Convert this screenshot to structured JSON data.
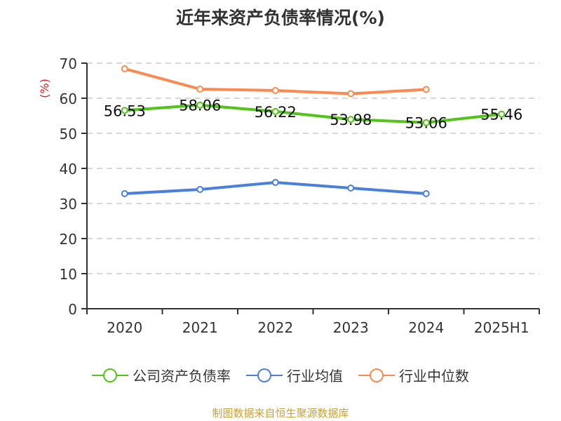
{
  "title": "近年来资产负债率情况(%)",
  "y_axis_unit": "(%)",
  "source": "制图数据来自恒生聚源数据库",
  "legend": [
    {
      "label": "公司资产负债率",
      "color": "#52c41a"
    },
    {
      "label": "行业均值",
      "color": "#4a7fdc"
    },
    {
      "label": "行业中位数",
      "color": "#fc8a50"
    }
  ],
  "chart_data": {
    "type": "line",
    "title": "近年来资产负债率情况(%)",
    "xlabel": "",
    "ylabel": "(%)",
    "categories": [
      "2020",
      "2021",
      "2022",
      "2023",
      "2024",
      "2025H1"
    ],
    "ylim": [
      0,
      70
    ],
    "yticks": [
      0,
      10,
      20,
      30,
      40,
      50,
      60,
      70
    ],
    "grid": "horizontal dashed",
    "legend_position": "bottom",
    "series": [
      {
        "name": "公司资产负债率",
        "color": "#52c41a",
        "values": [
          56.53,
          58.06,
          56.22,
          53.98,
          53.06,
          55.46
        ],
        "labels": [
          "56.53",
          "58.06",
          "56.22",
          "53.98",
          "53.06",
          "55.46"
        ]
      },
      {
        "name": "行业均值",
        "color": "#4a7fdc",
        "values": [
          32.8,
          34.0,
          36.0,
          34.4,
          32.8,
          null
        ]
      },
      {
        "name": "行业中位数",
        "color": "#fc8a50",
        "values": [
          68.4,
          62.6,
          62.2,
          61.3,
          62.5,
          null
        ]
      }
    ]
  }
}
